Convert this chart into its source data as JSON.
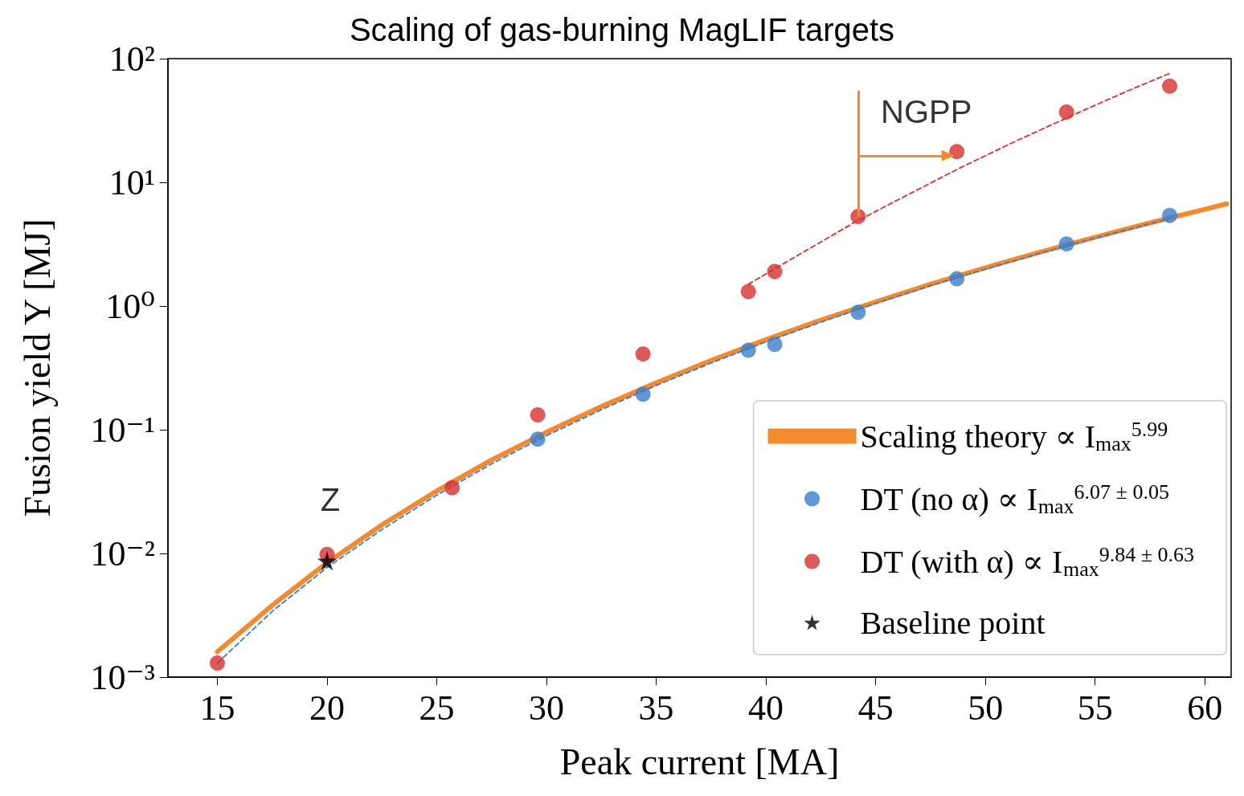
{
  "chart_data": {
    "type": "scatter",
    "title": "Scaling of gas-burning MagLIF targets",
    "xlabel": "Peak current [MA]",
    "ylabel": "Fusion yield Y [MJ]",
    "xlim": [
      12.75,
      61.2
    ],
    "xticks": [
      15,
      20,
      25,
      30,
      35,
      40,
      45,
      50,
      55,
      60
    ],
    "ylim": [
      0.001,
      100
    ],
    "yticks": [
      {
        "value": 0.001,
        "label": "10⁻³"
      },
      {
        "value": 0.01,
        "label": "10⁻²"
      },
      {
        "value": 0.1,
        "label": "10⁻¹"
      },
      {
        "value": 1,
        "label": "10⁰"
      },
      {
        "value": 10,
        "label": "10¹"
      },
      {
        "value": 100,
        "label": "10²"
      }
    ],
    "log": "y",
    "grid": false,
    "legend": "bottom right",
    "series": [
      {
        "name": "Scaling theory ∝ I$_{max}$$^{5.99}$",
        "type": "line",
        "color": "#f28a30",
        "marker": "none",
        "line_style": "solid",
        "x": [
          15,
          17.5,
          20,
          22.5,
          25,
          27.5,
          30,
          32.5,
          35,
          37.5,
          40,
          42.5,
          45,
          47.5,
          50,
          52.5,
          55,
          57.5,
          61
        ],
        "values": [
          0.0016,
          0.0038,
          0.0084,
          0.017,
          0.032,
          0.057,
          0.0955,
          0.154,
          0.24,
          0.363,
          0.535,
          0.77,
          1.08,
          1.5,
          2.04,
          2.73,
          3.6,
          4.7,
          6.7
        ]
      },
      {
        "type": "line",
        "color": "#3a7dc9",
        "marker": "none",
        "line_style": "dashed",
        "x": [
          15,
          17.5,
          20,
          22.5,
          25,
          27.5,
          30,
          32.5,
          35,
          37.5,
          40,
          42.5,
          45,
          47.5,
          50,
          52.5,
          55,
          58.4
        ],
        "values": [
          0.0013,
          0.0034,
          0.0077,
          0.0156,
          0.0296,
          0.053,
          0.0895,
          0.145,
          0.228,
          0.346,
          0.513,
          0.74,
          1.05,
          1.46,
          1.99,
          2.67,
          3.54,
          5.1
        ]
      },
      {
        "type": "line",
        "color": "#d62f2f",
        "marker": "none",
        "line_style": "dashed",
        "x": [
          39.2,
          41.5,
          44,
          46.5,
          49,
          51.5,
          54,
          56.5,
          58.4
        ],
        "values": [
          1.5,
          2.6,
          4.7,
          8,
          13.5,
          22,
          35,
          55,
          76
        ]
      },
      {
        "name": "DT (no α) ∝ I$_{max}$$^{6.07 ± 0.05}$",
        "color": "#3a7dc9",
        "marker": "circle",
        "x": [
          29.6,
          34.4,
          39.2,
          40.4,
          44.2,
          48.7,
          53.7,
          58.4
        ],
        "values": [
          0.084,
          0.194,
          0.44,
          0.49,
          0.89,
          1.66,
          3.18,
          5.4
        ]
      },
      {
        "name": "DT (with α) ∝ I$_{max}$$^{9.84 ± 0.63}$",
        "color": "#d62f2f",
        "marker": "circle",
        "x": [
          15,
          20,
          25.7,
          29.6,
          34.4,
          39.2,
          40.4,
          44.2,
          48.7,
          53.7,
          58.4
        ],
        "values": [
          0.0013,
          0.0098,
          0.034,
          0.132,
          0.41,
          1.31,
          1.9,
          5.3,
          17.7,
          37,
          60
        ]
      },
      {
        "name": "Baseline point",
        "color": "#000000",
        "marker": "star",
        "x": [
          20
        ],
        "values": [
          0.0087
        ]
      }
    ],
    "annotations": [
      {
        "text": "Z",
        "x": 20,
        "y": 0.0087
      },
      {
        "text": "NGPP",
        "x": 44.2,
        "y": 5.3
      }
    ]
  }
}
